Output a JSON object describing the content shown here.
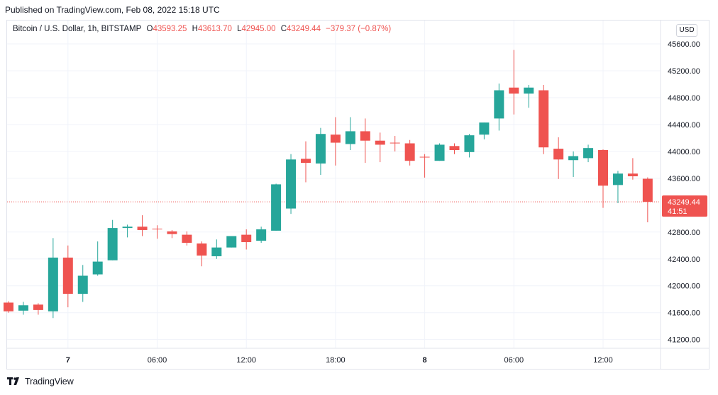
{
  "published": "Published on TradingView.com, Feb 08, 2022 15:18 UTC",
  "legend": {
    "symbol": "Bitcoin / U.S. Dollar, 1h, BITSTAMP",
    "o_label": "O",
    "o_value": "43593.25",
    "h_label": "H",
    "h_value": "43613.70",
    "l_label": "L",
    "l_value": "42945.00",
    "c_label": "C",
    "c_value": "43249.44",
    "change": "−379.37 (−0.87%)"
  },
  "currency_button": "USD",
  "price_tag": {
    "price": "43249.44",
    "countdown": "41:51"
  },
  "footer": {
    "brand": "TradingView"
  },
  "colors": {
    "up": "#26a69a",
    "down": "#ef5350",
    "grid": "#f0f3fa",
    "axis_text": "#131722",
    "price_line": "#ef5350"
  },
  "chart_data": {
    "type": "candlestick",
    "title": "Bitcoin / U.S. Dollar, 1h, BITSTAMP",
    "interval": "1h",
    "x_tick_labels": [
      {
        "index": 4,
        "label": "7"
      },
      {
        "index": 10,
        "label": "06:00"
      },
      {
        "index": 16,
        "label": "12:00"
      },
      {
        "index": 22,
        "label": "18:00"
      },
      {
        "index": 28,
        "label": "8"
      },
      {
        "index": 34,
        "label": "06:00"
      },
      {
        "index": 40,
        "label": "12:00"
      }
    ],
    "y_ticks": [
      41200,
      41600,
      42000,
      42400,
      42800,
      43600,
      44000,
      44400,
      44800,
      45200,
      45600
    ],
    "y_tick_labels": [
      "41200.00",
      "41600.00",
      "42000.00",
      "42400.00",
      "42800.00",
      "43600.00",
      "44000.00",
      "44400.00",
      "44800.00",
      "45200.00",
      "45600.00"
    ],
    "ylim": [
      41070,
      45790
    ],
    "grid": true,
    "last_price": 43249.44,
    "candles": [
      {
        "o": 41750,
        "h": 41770,
        "l": 41600,
        "c": 41620
      },
      {
        "o": 41630,
        "h": 41760,
        "l": 41570,
        "c": 41710
      },
      {
        "o": 41720,
        "h": 41740,
        "l": 41570,
        "c": 41640
      },
      {
        "o": 41620,
        "h": 42710,
        "l": 41520,
        "c": 42420
      },
      {
        "o": 42420,
        "h": 42600,
        "l": 41680,
        "c": 41880
      },
      {
        "o": 41880,
        "h": 42310,
        "l": 41760,
        "c": 42150
      },
      {
        "o": 42170,
        "h": 42660,
        "l": 42150,
        "c": 42360
      },
      {
        "o": 42380,
        "h": 42980,
        "l": 42380,
        "c": 42860
      },
      {
        "o": 42860,
        "h": 42910,
        "l": 42720,
        "c": 42880
      },
      {
        "o": 42880,
        "h": 43050,
        "l": 42740,
        "c": 42830
      },
      {
        "o": 42850,
        "h": 42900,
        "l": 42700,
        "c": 42840
      },
      {
        "o": 42810,
        "h": 42830,
        "l": 42710,
        "c": 42770
      },
      {
        "o": 42760,
        "h": 42810,
        "l": 42600,
        "c": 42640
      },
      {
        "o": 42630,
        "h": 42660,
        "l": 42290,
        "c": 42450
      },
      {
        "o": 42440,
        "h": 42690,
        "l": 42400,
        "c": 42570
      },
      {
        "o": 42570,
        "h": 42740,
        "l": 42570,
        "c": 42740
      },
      {
        "o": 42760,
        "h": 42840,
        "l": 42540,
        "c": 42650
      },
      {
        "o": 42670,
        "h": 42880,
        "l": 42640,
        "c": 42840
      },
      {
        "o": 42820,
        "h": 43520,
        "l": 42820,
        "c": 43510
      },
      {
        "o": 43150,
        "h": 43960,
        "l": 43070,
        "c": 43880
      },
      {
        "o": 43890,
        "h": 44150,
        "l": 43540,
        "c": 43830
      },
      {
        "o": 43820,
        "h": 44350,
        "l": 43650,
        "c": 44260
      },
      {
        "o": 44250,
        "h": 44510,
        "l": 43790,
        "c": 44130
      },
      {
        "o": 44110,
        "h": 44510,
        "l": 44020,
        "c": 44300
      },
      {
        "o": 44300,
        "h": 44490,
        "l": 43830,
        "c": 44160
      },
      {
        "o": 44160,
        "h": 44280,
        "l": 43840,
        "c": 44100
      },
      {
        "o": 44130,
        "h": 44230,
        "l": 44000,
        "c": 44120
      },
      {
        "o": 44120,
        "h": 44170,
        "l": 43790,
        "c": 43860
      },
      {
        "o": 43920,
        "h": 43960,
        "l": 43610,
        "c": 43910
      },
      {
        "o": 43860,
        "h": 44120,
        "l": 43860,
        "c": 44100
      },
      {
        "o": 44080,
        "h": 44120,
        "l": 43960,
        "c": 44020
      },
      {
        "o": 43990,
        "h": 44260,
        "l": 43910,
        "c": 44240
      },
      {
        "o": 44250,
        "h": 44430,
        "l": 44180,
        "c": 44430
      },
      {
        "o": 44490,
        "h": 45010,
        "l": 44310,
        "c": 44910
      },
      {
        "o": 44950,
        "h": 45510,
        "l": 44550,
        "c": 44860
      },
      {
        "o": 44860,
        "h": 44990,
        "l": 44650,
        "c": 44950
      },
      {
        "o": 44910,
        "h": 44990,
        "l": 43960,
        "c": 44060
      },
      {
        "o": 44040,
        "h": 44210,
        "l": 43590,
        "c": 43880
      },
      {
        "o": 43870,
        "h": 44000,
        "l": 43620,
        "c": 43930
      },
      {
        "o": 43900,
        "h": 44100,
        "l": 43840,
        "c": 44050
      },
      {
        "o": 44020,
        "h": 44030,
        "l": 43160,
        "c": 43490
      },
      {
        "o": 43500,
        "h": 43710,
        "l": 43230,
        "c": 43670
      },
      {
        "o": 43670,
        "h": 43900,
        "l": 43580,
        "c": 43630
      },
      {
        "o": 43593.25,
        "h": 43613.7,
        "l": 42945.0,
        "c": 43249.44
      }
    ]
  }
}
